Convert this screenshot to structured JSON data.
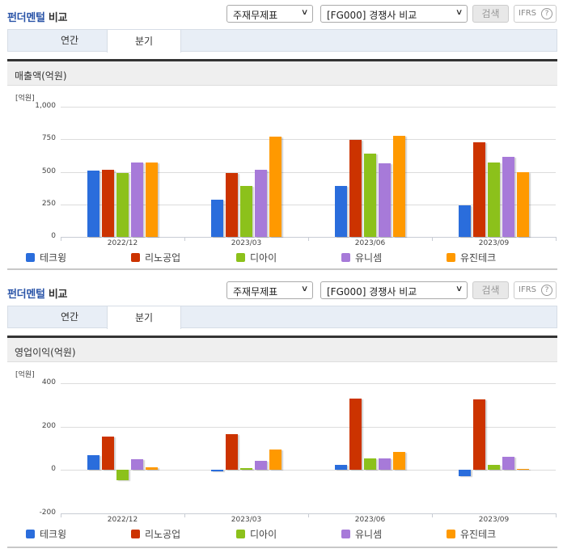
{
  "panels": [
    {
      "title_blue": "펀더멘털",
      "title_rest": " 비교",
      "select_statement": "주재무제표",
      "select_compare": "[FG000] 경쟁사 비교",
      "search_button": "검색",
      "ifrs_button": "IFRS",
      "help_icon": "?",
      "tabs": [
        {
          "label": "연간"
        },
        {
          "label": "분기"
        }
      ],
      "active_tab": "분기",
      "section_title": "매출액(억원)",
      "unit": "[억원]"
    },
    {
      "title_blue": "펀더멘털",
      "title_rest": " 비교",
      "select_statement": "주재무제표",
      "select_compare": "[FG000] 경쟁사 비교",
      "search_button": "검색",
      "ifrs_button": "IFRS",
      "help_icon": "?",
      "tabs": [
        {
          "label": "연간"
        },
        {
          "label": "분기"
        }
      ],
      "active_tab": "분기",
      "section_title": "영업이익(억원)",
      "unit": "[억원]"
    }
  ],
  "legend": [
    {
      "name": "테크윙",
      "color": "#2a6ddc"
    },
    {
      "name": "리노공업",
      "color": "#cc3300"
    },
    {
      "name": "디아이",
      "color": "#8cc11b"
    },
    {
      "name": "유니셈",
      "color": "#a77ad9"
    },
    {
      "name": "유진테크",
      "color": "#ff9900"
    }
  ],
  "chart_data": [
    {
      "type": "bar",
      "title": "매출액(억원)",
      "xlabel": "",
      "ylabel": "[억원]",
      "categories": [
        "2022/12",
        "2023/03",
        "2023/06",
        "2023/09"
      ],
      "yticks": [
        "1,000",
        "750",
        "500",
        "250",
        "0"
      ],
      "ylim": [
        0,
        1000
      ],
      "grid": true,
      "legend_position": "bottom",
      "series": [
        {
          "name": "테크윙",
          "values": [
            510,
            285,
            390,
            240
          ]
        },
        {
          "name": "리노공업",
          "values": [
            515,
            490,
            745,
            725
          ]
        },
        {
          "name": "디아이",
          "values": [
            490,
            390,
            640,
            570
          ]
        },
        {
          "name": "유니셈",
          "values": [
            570,
            515,
            565,
            615
          ]
        },
        {
          "name": "유진테크",
          "values": [
            570,
            770,
            775,
            500
          ]
        }
      ]
    },
    {
      "type": "bar",
      "title": "영업이익(억원)",
      "xlabel": "",
      "ylabel": "[억원]",
      "categories": [
        "2022/12",
        "2023/03",
        "2023/06",
        "2023/09"
      ],
      "yticks": [
        "400",
        "200",
        "0",
        "-200"
      ],
      "ylim": [
        -200,
        400
      ],
      "grid": true,
      "legend_position": "bottom",
      "series": [
        {
          "name": "테크윙",
          "values": [
            68,
            -3,
            22,
            -30
          ]
        },
        {
          "name": "리노공업",
          "values": [
            153,
            167,
            330,
            326
          ]
        },
        {
          "name": "디아이",
          "values": [
            -48,
            8,
            52,
            23
          ]
        },
        {
          "name": "유니셈",
          "values": [
            48,
            42,
            52,
            60
          ]
        },
        {
          "name": "유진테크",
          "values": [
            12,
            93,
            82,
            5
          ]
        }
      ]
    }
  ]
}
